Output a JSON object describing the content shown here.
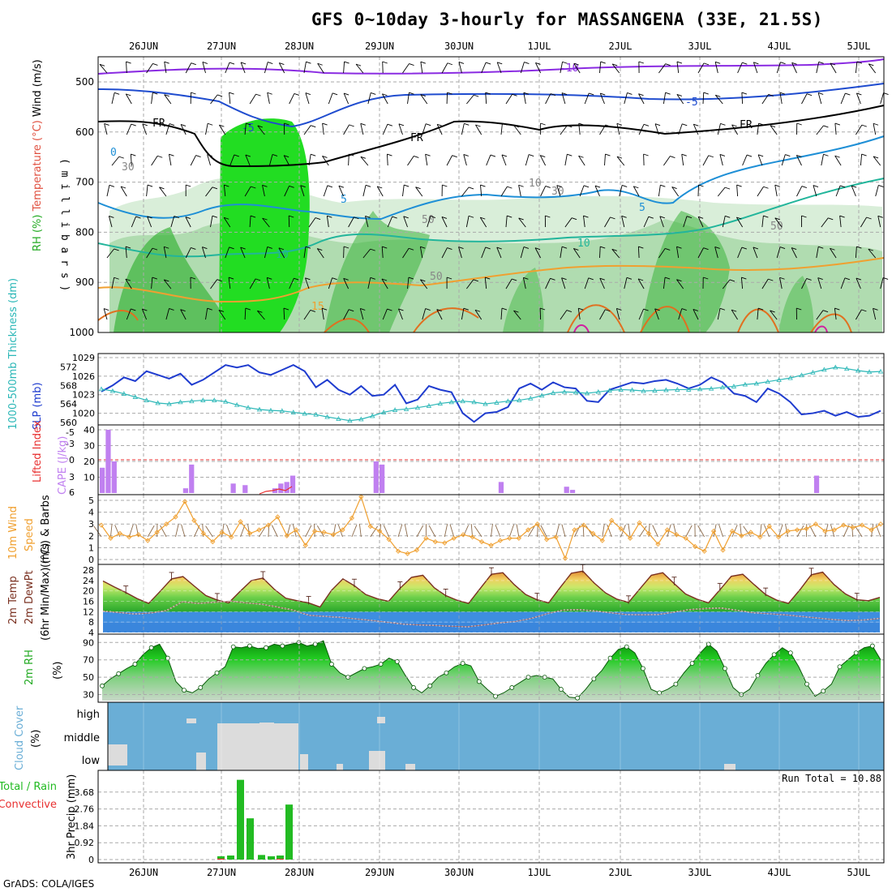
{
  "title": "GFS 0~10day 3-hourly for MASSANGENA (33E, 21.5S)",
  "credit": "GrADS: COLA/IGES",
  "colors": {
    "rh_light": "#d9eed9",
    "rh_mid": "#a8d8a8",
    "rh_dark": "#3cb43c",
    "rh_bright": "#22dd22",
    "slp": "#1f3ccf",
    "thickness": "#2bb7b7",
    "cape": "#c080f0",
    "lifted": "#e83030",
    "wind": "#f0a030",
    "barb": "#8b6a4a",
    "temp_line": "#7a3020",
    "dewpt_line": "#a06060",
    "cloud_bg": "#6aaed6",
    "cloud_fill": "#dcdcdc",
    "rain": "#22bb22",
    "conv": "#e83030",
    "rh2m": "#22aa22",
    "grid": "#aaaaaa"
  },
  "date_labels": [
    "26JUN",
    "27JUN",
    "28JUN",
    "29JUN",
    "30JUN",
    "1JUL",
    "2JUL",
    "3JUL",
    "4JUL",
    "5JUL"
  ],
  "chart_data": [
    {
      "type": "heatmap",
      "panel": "upper-air",
      "ylabel_parts": [
        "RH (%)",
        "Temperature (°C)",
        "Wind (m/s)"
      ],
      "y_unit_label": "( m i l l i b a r s )",
      "y_ticks": [
        500,
        600,
        700,
        800,
        900,
        1000
      ],
      "contour_labels": [
        "-10",
        "-5",
        "FR",
        "0",
        "5",
        "10",
        "15",
        "30",
        "50",
        "10"
      ]
    },
    {
      "type": "line",
      "panel": "slp-thickness",
      "ylabel_left": "1000-500mb Thickness (dm)",
      "ylabel_right": "SLP (mb)",
      "y_ticks_thickness": [
        560,
        564,
        568,
        572
      ],
      "y_ticks_slp": [
        1020,
        1023,
        1026,
        1029
      ],
      "series": [
        {
          "name": "SLP (mb)",
          "values": [
            1023.5,
            1024.5,
            1025.8,
            1025.2,
            1026.8,
            1026.2,
            1025.6,
            1026.4,
            1024.6,
            1025.4,
            1026.6,
            1027.8,
            1027.4,
            1027.8,
            1026.6,
            1026.2,
            1027.0,
            1027.8,
            1026.8,
            1024.2,
            1025.4,
            1023.8,
            1023.0,
            1024.4,
            1022.8,
            1023.0,
            1024.6,
            1021.6,
            1022.2,
            1024.4,
            1023.8,
            1023.4,
            1020.0,
            1018.6,
            1020.0,
            1020.2,
            1021.0,
            1024.0,
            1024.8,
            1023.8,
            1025.0,
            1024.2,
            1024.0,
            1022.0,
            1021.8,
            1023.8,
            1024.4,
            1025.0,
            1024.8,
            1025.2,
            1025.4,
            1024.8,
            1024.0,
            1024.6,
            1025.8,
            1025.0,
            1023.2,
            1022.8,
            1021.8,
            1024.0,
            1023.2,
            1021.8,
            1019.8,
            1020.0,
            1020.4,
            1019.6,
            1020.2,
            1019.4,
            1019.6,
            1020.4
          ]
        },
        {
          "name": "1000-500mb Thickness (dm)",
          "values": [
            567.2,
            566.8,
            566.2,
            565.5,
            564.8,
            564.2,
            564.0,
            564.4,
            564.6,
            564.8,
            564.8,
            564.5,
            563.8,
            563.2,
            562.8,
            562.6,
            562.5,
            562.2,
            561.9,
            561.7,
            561.2,
            560.8,
            560.4,
            560.7,
            561.4,
            562.2,
            562.7,
            562.9,
            563.2,
            563.6,
            564.1,
            564.4,
            564.6,
            564.4,
            564.0,
            564.3,
            564.6,
            564.8,
            565.2,
            565.8,
            566.4,
            566.6,
            566.5,
            566.3,
            566.6,
            566.9,
            567.1,
            567.0,
            566.8,
            566.9,
            567.0,
            567.1,
            567.1,
            567.2,
            567.3,
            567.6,
            567.8,
            568.2,
            568.4,
            568.8,
            569.2,
            569.6,
            570.2,
            570.8,
            571.4,
            571.9,
            571.6,
            571.2,
            570.9,
            571.0
          ]
        }
      ]
    },
    {
      "type": "bar",
      "panel": "cape-li",
      "ylabel_left": "Lifted Index",
      "ylabel_right": "CAPE (J/kg)",
      "y_ticks_li": [
        -5,
        -3,
        0,
        3,
        6
      ],
      "y_ticks_cape": [
        10,
        20,
        30,
        40
      ],
      "series": [
        {
          "name": "CAPE (J/kg)",
          "values": [
            16,
            40,
            20,
            0,
            0,
            0,
            0,
            0,
            0,
            0,
            0,
            0,
            0,
            0,
            3,
            18,
            0,
            0,
            0,
            0,
            0,
            0,
            6,
            0,
            5,
            0,
            0,
            0,
            0,
            3,
            6,
            7,
            11,
            0,
            0,
            0,
            0,
            0,
            0,
            0,
            0,
            0,
            0,
            0,
            0,
            0,
            20,
            18,
            0,
            0,
            0,
            0,
            0,
            0,
            0,
            0,
            0,
            0,
            0,
            0,
            0,
            0,
            0,
            0,
            0,
            0,
            0,
            7,
            0,
            0,
            0,
            0,
            0,
            0,
            0,
            0,
            0,
            0,
            4,
            2,
            0,
            0,
            0,
            0,
            0,
            0,
            0,
            0,
            0,
            0,
            0,
            0,
            0,
            0,
            0,
            0,
            0,
            0,
            0,
            0,
            0,
            0,
            0,
            0,
            0,
            0,
            0,
            0,
            0,
            0,
            0,
            0,
            0,
            0,
            0,
            0,
            0,
            0,
            0,
            0,
            11,
            0,
            0,
            0,
            0,
            0,
            0,
            0,
            0,
            0,
            0,
            0
          ]
        }
      ]
    },
    {
      "type": "line",
      "panel": "wind10m",
      "ylabel": "10m Wind Speed (m/s) & Barbs",
      "y_ticks": [
        0,
        1,
        2,
        3,
        4,
        5
      ],
      "series": [
        {
          "name": "10m Wind Speed",
          "values": [
            2.9,
            1.8,
            2.2,
            1.9,
            2.1,
            1.6,
            2.3,
            3.0,
            3.6,
            4.9,
            3.3,
            2.2,
            1.5,
            2.3,
            1.9,
            3.2,
            2.2,
            2.5,
            2.9,
            3.6,
            2.0,
            2.5,
            1.2,
            2.4,
            2.3,
            2.1,
            2.5,
            3.5,
            5.3,
            2.8,
            2.4,
            1.7,
            0.7,
            0.5,
            0.8,
            1.8,
            1.5,
            1.4,
            1.8,
            2.1,
            1.9,
            1.5,
            1.2,
            1.6,
            1.8,
            1.8,
            2.5,
            3.0,
            1.7,
            1.9,
            0.1,
            2.5,
            2.9,
            2.2,
            1.6,
            3.3,
            2.6,
            1.8,
            3.1,
            2.2,
            1.3,
            2.5,
            2.1,
            1.8,
            1.1,
            0.7,
            2.4,
            0.8,
            2.4,
            2.0,
            2.3,
            1.9,
            2.8,
            1.9,
            2.4,
            2.5,
            2.6,
            3.0,
            2.4,
            2.5,
            2.9,
            2.7,
            2.9,
            2.5,
            3.0
          ]
        }
      ]
    },
    {
      "type": "area",
      "panel": "temp2m",
      "ylabel_parts": [
        "2m Temp",
        "2m DewPt",
        "(6hr Min/Max) (°C)"
      ],
      "y_ticks": [
        4,
        8,
        12,
        16,
        20,
        24,
        28
      ],
      "series": [
        {
          "name": "2m Temp",
          "values": [
            23.8,
            21.5,
            19.4,
            17.0,
            15.2,
            19.8,
            24.6,
            25.5,
            21.8,
            18.2,
            16.5,
            15.4,
            19.8,
            24.0,
            24.9,
            20.6,
            17.2,
            16.2,
            15.4,
            13.8,
            20.2,
            24.6,
            22.0,
            18.6,
            17.0,
            16.0,
            21.0,
            25.2,
            26.0,
            21.2,
            18.2,
            16.4,
            15.2,
            20.8,
            26.4,
            27.0,
            22.4,
            18.6,
            16.6,
            15.4,
            21.2,
            26.8,
            27.6,
            23.0,
            19.2,
            16.8,
            15.6,
            20.8,
            26.0,
            27.0,
            22.8,
            18.8,
            16.8,
            15.4,
            20.4,
            25.6,
            26.4,
            22.4,
            18.6,
            16.4,
            15.2,
            20.4,
            26.2,
            27.2,
            22.4,
            18.8,
            16.6,
            16.2,
            17.5
          ]
        },
        {
          "name": "2m DewPt",
          "values": [
            12.2,
            11.7,
            11.1,
            11.5,
            12.4,
            15.8,
            15.2,
            15.6,
            16.1,
            15.4,
            14.9,
            13.8,
            12.6,
            10.6,
            10.2,
            9.8,
            9.2,
            8.6,
            7.9,
            7.2,
            6.9,
            6.7,
            6.4,
            6.2,
            6.9,
            7.7,
            8.2,
            9.4,
            11.2,
            12.6,
            12.8,
            12.3,
            11.6,
            10.9,
            10.8,
            10.9,
            11.8,
            12.8,
            13.2,
            13.4,
            12.5,
            11.6,
            11.2,
            10.8,
            10.2,
            9.6,
            9.0,
            8.6,
            8.8,
            9.4
          ]
        }
      ]
    },
    {
      "type": "area",
      "panel": "rh2m",
      "ylabel": "2m RH (%)",
      "y_ticks": [
        30,
        50,
        70,
        90
      ],
      "series": [
        {
          "name": "2m RH",
          "values": [
            40,
            48,
            54,
            60,
            65,
            76,
            84,
            88,
            72,
            45,
            35,
            32,
            38,
            48,
            55,
            62,
            85,
            84,
            86,
            83,
            84,
            88,
            86,
            88,
            90,
            86,
            88,
            92,
            65,
            55,
            50,
            55,
            60,
            62,
            65,
            72,
            68,
            52,
            38,
            32,
            40,
            50,
            55,
            62,
            66,
            63,
            45,
            36,
            28,
            32,
            38,
            44,
            50,
            52,
            50,
            48,
            36,
            27,
            26,
            36,
            48,
            58,
            72,
            82,
            85,
            78,
            60,
            36,
            32,
            36,
            42,
            55,
            66,
            78,
            88,
            80,
            60,
            38,
            30,
            36,
            52,
            66,
            76,
            84,
            78,
            62,
            42,
            28,
            34,
            42,
            62,
            70,
            78,
            84,
            86,
            70
          ]
        }
      ]
    },
    {
      "type": "heatmap",
      "panel": "cloud",
      "ylabel": "Cloud Cover (%)",
      "y_ticks": [
        "high",
        "middle",
        "low"
      ]
    },
    {
      "type": "bar",
      "panel": "precip",
      "ylabel_left": "Total / Rain",
      "ylabel_left2": "Convective",
      "ylabel_right": "3hr Precip (mm)",
      "y_ticks": [
        0,
        0.92,
        1.84,
        2.76,
        3.68
      ],
      "run_total_label": "Run Total = 10.88",
      "series": [
        {
          "name": "Total / Rain",
          "values": [
            0.18,
            0.22,
            4.35,
            2.25,
            0.25,
            0.18,
            0.22,
            3.0,
            0.28,
            0
          ]
        },
        {
          "name": "Convective",
          "values": [
            0.05,
            0.0,
            0.0,
            0.0,
            0.0,
            0.0,
            0.04,
            0.0,
            0.0,
            0
          ]
        }
      ]
    }
  ]
}
